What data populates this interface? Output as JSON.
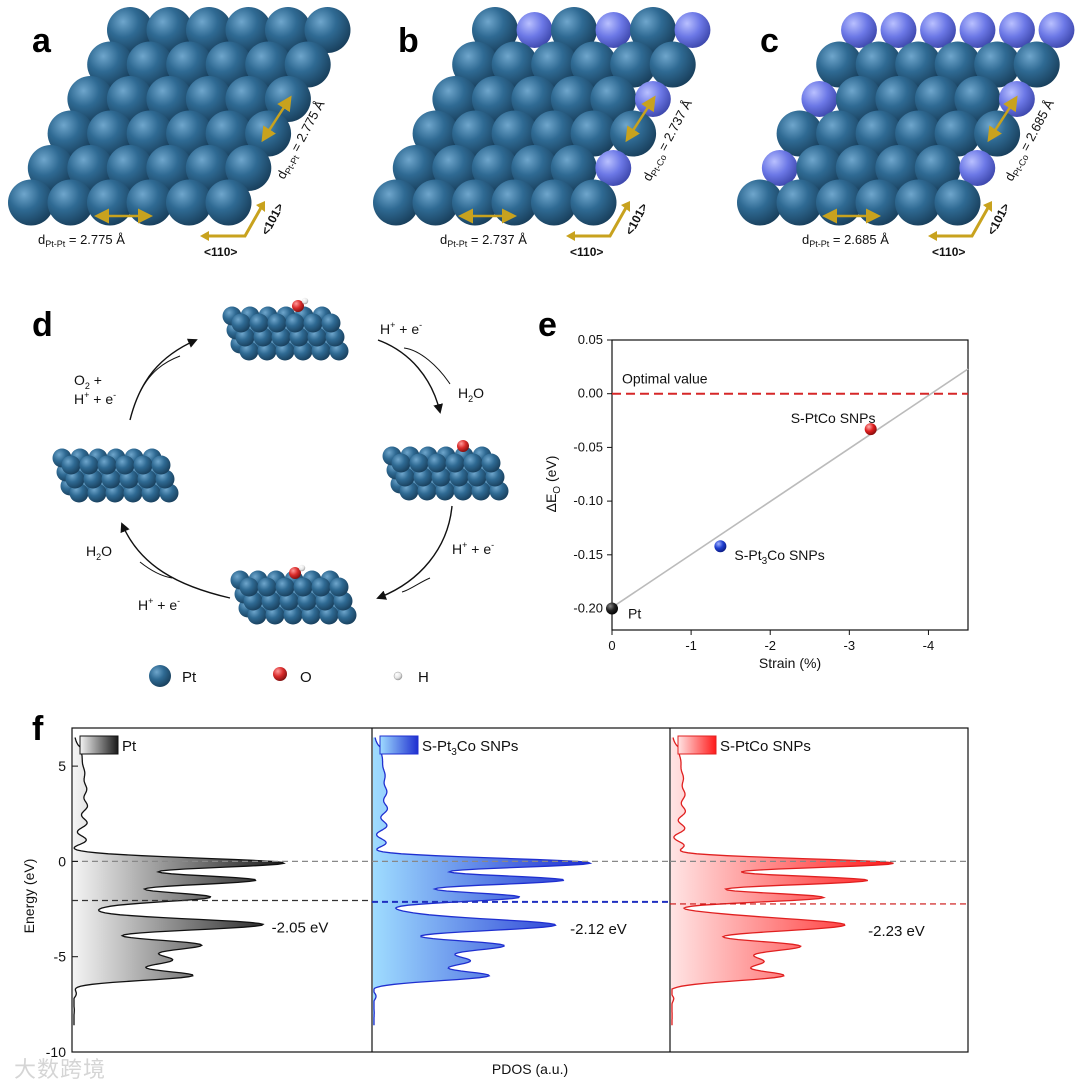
{
  "panels": {
    "a": {
      "label": "a",
      "d_pt_pt": "d",
      "d_pt_pt_sub": "Pt-Pt",
      "d_pt_pt_val": " = 2.775 Å",
      "d_diag": "d",
      "d_diag_sub": "Pt-Pt",
      "d_diag_val": " = 2.775 Å",
      "dir_110": "<110>",
      "dir_101": "<101>",
      "colors": {
        "pt": "#2f6a93",
        "co": "#6c78e6"
      }
    },
    "b": {
      "label": "b",
      "d_pt_pt": "d",
      "d_pt_pt_sub": "Pt-Pt",
      "d_pt_pt_val": " = 2.737 Å",
      "d_diag": "d",
      "d_diag_sub": "Pt-Co",
      "d_diag_val": " = 2.737 Å",
      "dir_110": "<110>",
      "dir_101": "<101>"
    },
    "c": {
      "label": "c",
      "d_pt_pt": "d",
      "d_pt_pt_sub": "Pt-Pt",
      "d_pt_pt_val": " = 2.685 Å",
      "d_diag": "d",
      "d_diag_sub": "Pt-Co",
      "d_diag_val": " = 2.685 Å",
      "dir_110": "<110>",
      "dir_101": "<101>"
    },
    "d": {
      "label": "d",
      "step_top_right": {
        "text": "H",
        "sup1": "+",
        "mid": " + e",
        "sup2": "-"
      },
      "product_right": {
        "text": "H",
        "sub": "2",
        "tail": "O"
      },
      "step_bottom_right": {
        "text": "H",
        "sup1": "+",
        "mid": " + e",
        "sup2": "-"
      },
      "step_bottom_left": {
        "text": "H",
        "sup1": "+",
        "mid": " + e",
        "sup2": "-"
      },
      "product_left": {
        "text": "H",
        "sub": "2",
        "tail": "O"
      },
      "step_top_left_line1": {
        "text": "O",
        "sub": "2",
        "tail": " +"
      },
      "step_top_left_line2": {
        "text": "H",
        "sup1": "+",
        "mid": " + e",
        "sup2": "-"
      },
      "legend": [
        {
          "name": "Pt",
          "color": "#2f6a93"
        },
        {
          "name": "O",
          "color": "#d92b2b"
        },
        {
          "name": "H",
          "color": "#f2f2f2"
        }
      ]
    },
    "e": {
      "label": "e"
    },
    "f": {
      "label": "f"
    }
  },
  "chart_data": [
    {
      "id": "e",
      "type": "scatter",
      "xlabel": "Strain (%)",
      "ylabel_main": "ΔE",
      "ylabel_sub": "O",
      "ylabel_unit": " (eV)",
      "xlim": [
        0,
        -4.5
      ],
      "ylim": [
        -0.22,
        0.05
      ],
      "xticks": [
        0,
        -1,
        -2,
        -3,
        -4
      ],
      "xticklabels": [
        "0",
        "-1",
        "-2",
        "-3",
        "-4"
      ],
      "yticks": [
        0.05,
        0.0,
        -0.05,
        -0.1,
        -0.15,
        -0.2
      ],
      "yticklabels": [
        "0.05",
        "0.00",
        "-0.05",
        "-0.10",
        "-0.15",
        "-0.20"
      ],
      "grid": false,
      "reference_line": {
        "y": 0.0,
        "label": "Optimal value",
        "color": "#d62728"
      },
      "fit_line": {
        "x": [
          0,
          -4.5
        ],
        "y": [
          -0.199,
          0.023
        ],
        "color": "#bbbbbb"
      },
      "points": [
        {
          "name": "Pt",
          "x": 0.0,
          "y": -0.2,
          "color": "#111111",
          "label_color": "#111111"
        },
        {
          "name": "S-Pt",
          "name_sub": "3",
          "name_tail": "Co SNPs",
          "x": -1.37,
          "y": -0.142,
          "color": "#1f3fd0",
          "label_color": "#3a5fb0"
        },
        {
          "name": "S-PtCo SNPs",
          "x": -3.27,
          "y": -0.033,
          "color": "#e02020",
          "label_color": "#d62728"
        }
      ]
    },
    {
      "id": "f",
      "type": "area",
      "ylabel": "Energy (eV)",
      "xlabel": "PDOS (a.u.)",
      "ylim": [
        -10,
        7
      ],
      "yticks": [
        5,
        0,
        -5,
        -10
      ],
      "yticklabels": [
        "5",
        "0",
        "-5",
        "-10"
      ],
      "fermi_level": 0,
      "series": [
        {
          "name": "Pt",
          "line_color": "#111111",
          "fill_from": "#f4f4f4",
          "fill_to": "#1a1a1a",
          "d_band_center": -2.05,
          "d_band_label": "-2.05 eV",
          "label_color": "#111111",
          "center_color": "#333333"
        },
        {
          "name": "S-Pt",
          "name_sub": "3",
          "name_tail": "Co SNPs",
          "line_color": "#1f2fd0",
          "fill_from": "#9fdcff",
          "fill_to": "#1f2fd0",
          "d_band_center": -2.12,
          "d_band_label": "-2.12 eV",
          "label_color": "#1f2fc0",
          "center_color": "#1f2fc0"
        },
        {
          "name": "S-PtCo SNPs",
          "line_color": "#e02020",
          "fill_from": "#ffe4e4",
          "fill_to": "#ff1a1a",
          "d_band_center": -2.23,
          "d_band_label": "-2.23 eV",
          "label_color": "#cc1111",
          "center_color": "#cc1111"
        }
      ]
    }
  ],
  "watermark": "大数跨境"
}
